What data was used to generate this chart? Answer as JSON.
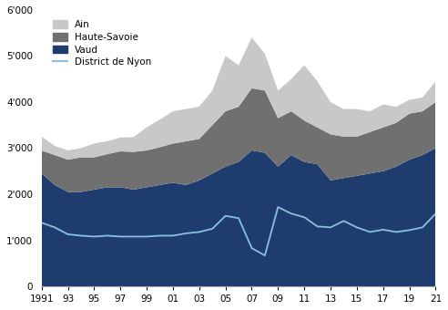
{
  "years": [
    1991,
    1992,
    1993,
    1994,
    1995,
    1996,
    1997,
    1998,
    1999,
    2000,
    2001,
    2002,
    2003,
    2004,
    2005,
    2006,
    2007,
    2008,
    2009,
    2010,
    2011,
    2012,
    2013,
    2014,
    2015,
    2016,
    2017,
    2018,
    2019,
    2020,
    2021
  ],
  "vaud": [
    2450,
    2200,
    2050,
    2050,
    2100,
    2150,
    2150,
    2100,
    2150,
    2200,
    2250,
    2200,
    2300,
    2450,
    2600,
    2700,
    2950,
    2900,
    2600,
    2850,
    2700,
    2650,
    2300,
    2350,
    2400,
    2450,
    2500,
    2600,
    2750,
    2850,
    3000
  ],
  "haute_savoie": [
    500,
    650,
    700,
    750,
    700,
    720,
    780,
    820,
    800,
    820,
    850,
    950,
    900,
    1050,
    1200,
    1200,
    1350,
    1350,
    1050,
    950,
    900,
    800,
    1000,
    900,
    850,
    900,
    950,
    950,
    1000,
    950,
    1000
  ],
  "ain": [
    300,
    200,
    200,
    200,
    300,
    280,
    300,
    320,
    500,
    600,
    700,
    700,
    700,
    750,
    1200,
    900,
    1100,
    800,
    600,
    700,
    1200,
    1000,
    700,
    600,
    600,
    450,
    500,
    350,
    300,
    300,
    450
  ],
  "district_nyon": [
    1380,
    1280,
    1130,
    1100,
    1080,
    1100,
    1080,
    1080,
    1080,
    1100,
    1100,
    1150,
    1180,
    1250,
    1530,
    1480,
    830,
    670,
    1720,
    1580,
    1500,
    1300,
    1280,
    1420,
    1280,
    1180,
    1230,
    1180,
    1220,
    1280,
    1580
  ],
  "colors": {
    "ain": "#c8c8c8",
    "haute_savoie": "#707070",
    "vaud": "#1e3d6e",
    "district_nyon": "#8bbfde"
  },
  "yticks": [
    0,
    1000,
    2000,
    3000,
    4000,
    5000,
    6000
  ],
  "ytick_labels": [
    "0",
    "1'000",
    "2'000",
    "3'000",
    "4'000",
    "5'000",
    "6'000"
  ],
  "xtick_labels": [
    "1991",
    "93",
    "95",
    "97",
    "99",
    "01",
    "03",
    "05",
    "07",
    "09",
    "11",
    "13",
    "15",
    "17",
    "19",
    "21"
  ],
  "background_color": "#ffffff"
}
